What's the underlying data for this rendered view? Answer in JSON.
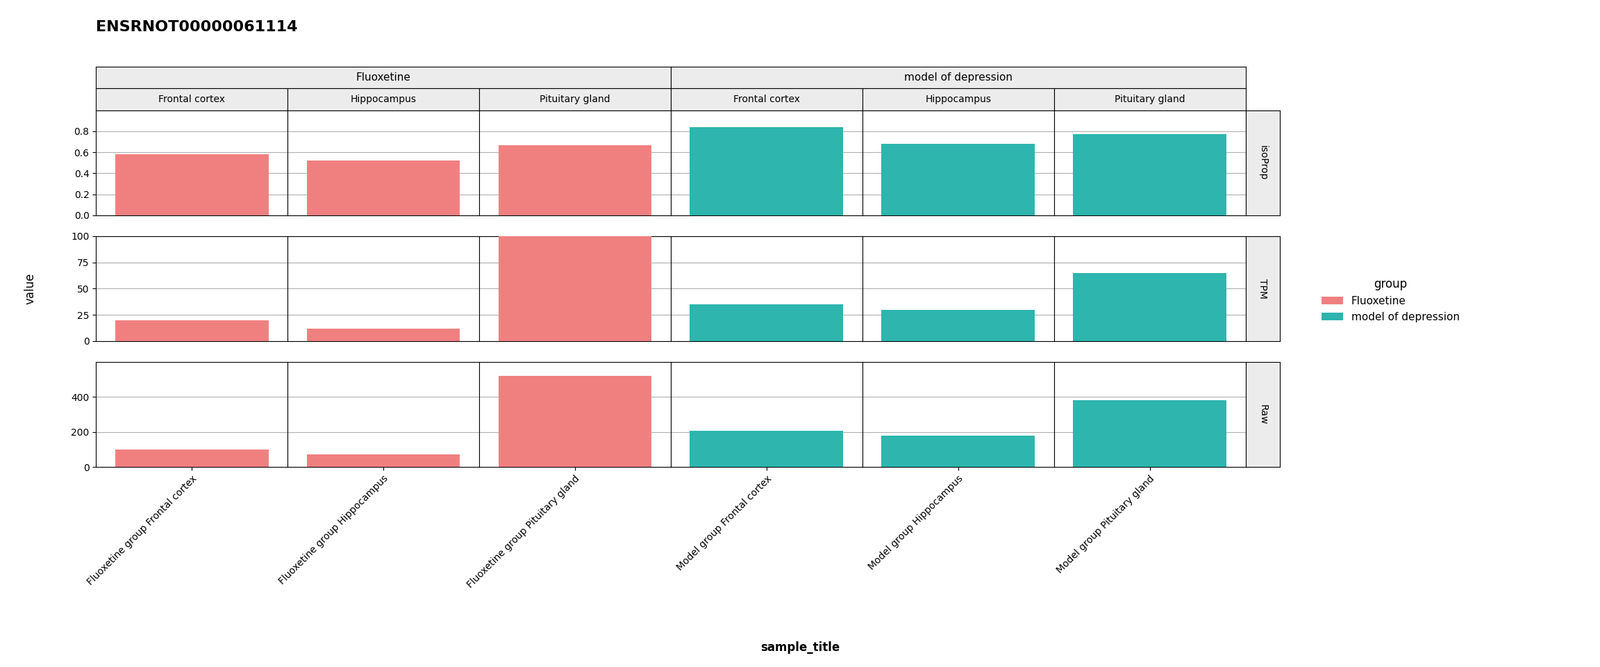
{
  "chart_data": {
    "type": "bar",
    "title": "ENSRNOT00000061114",
    "xlabel": "sample_title",
    "ylabel": "value",
    "column_headers": [
      "Fluoxetine",
      "model of depression"
    ],
    "column_subheaders": [
      "Frontal cortex",
      "Hippocampus",
      "Pituitary gland",
      "Frontal cortex",
      "Hippocampus",
      "Pituitary gland"
    ],
    "categories": [
      "Fluoxetine group Frontal cortex",
      "Fluoxetine group Hippocampus",
      "Fluoxetine group Pituitary gland",
      "Model group Frontal cortex",
      "Model group Hippocampus",
      "Model group Pituitary gland"
    ],
    "colors": [
      "#F08080",
      "#F08080",
      "#F08080",
      "#2DB5AE",
      "#2DB5AE",
      "#2DB5AE"
    ],
    "panels": [
      {
        "name": "isoProp",
        "values": [
          0.58,
          0.52,
          0.67,
          0.84,
          0.68,
          0.77
        ],
        "ylim": [
          0.0,
          1.0
        ],
        "yticks": [
          0.0,
          0.2,
          0.4,
          0.6,
          0.8
        ]
      },
      {
        "name": "TPM",
        "values": [
          20,
          12,
          100,
          35,
          30,
          65
        ],
        "ylim": [
          0,
          100
        ],
        "yticks": [
          0,
          25,
          50,
          75,
          100
        ]
      },
      {
        "name": "Raw",
        "values": [
          100,
          70,
          520,
          205,
          180,
          380
        ],
        "ylim": [
          0,
          600
        ],
        "yticks": [
          0,
          200,
          400
        ]
      }
    ],
    "legend": "right",
    "legend_title": "group",
    "legend_entries": [
      {
        "name": "Fluoxetine",
        "color": "#F08080"
      },
      {
        "name": "model of depression",
        "color": "#2DB5AE"
      }
    ],
    "grid": true
  }
}
